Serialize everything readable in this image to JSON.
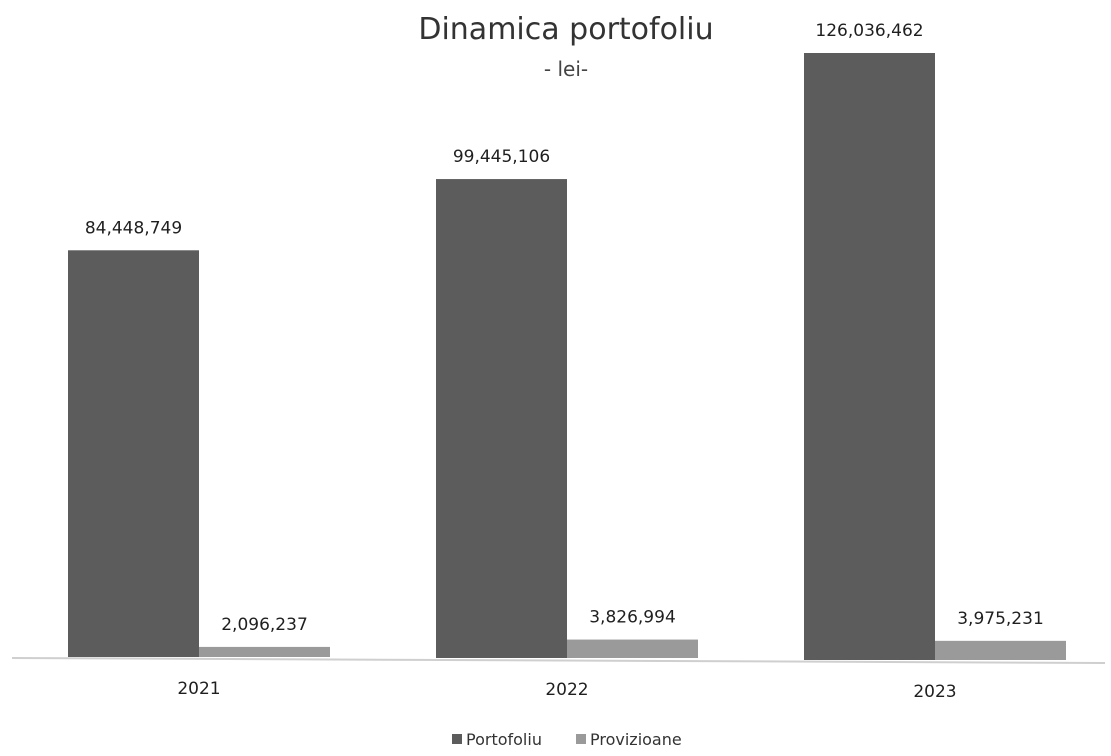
{
  "chart_data": {
    "type": "bar",
    "title": "Dinamica portofoliu",
    "subtitle": "- lei-",
    "categories": [
      "2021",
      "2022",
      "2023"
    ],
    "series": [
      {
        "name": "Portofoliu",
        "color": "#5c5c5c",
        "values": [
          84448749,
          99445106,
          126036462
        ],
        "labels": [
          "84,448,749",
          "99,445,106",
          "126,036,462"
        ]
      },
      {
        "name": "Provizioane",
        "color": "#9a9a9a",
        "values": [
          2096237,
          3826994,
          3975231
        ],
        "labels": [
          "2,096,237",
          "3,826,994",
          "3,975,231"
        ]
      }
    ],
    "ylim": [
      0,
      126036462
    ],
    "grid": false,
    "legend": "bottom-center",
    "xlabel": "",
    "ylabel": ""
  }
}
